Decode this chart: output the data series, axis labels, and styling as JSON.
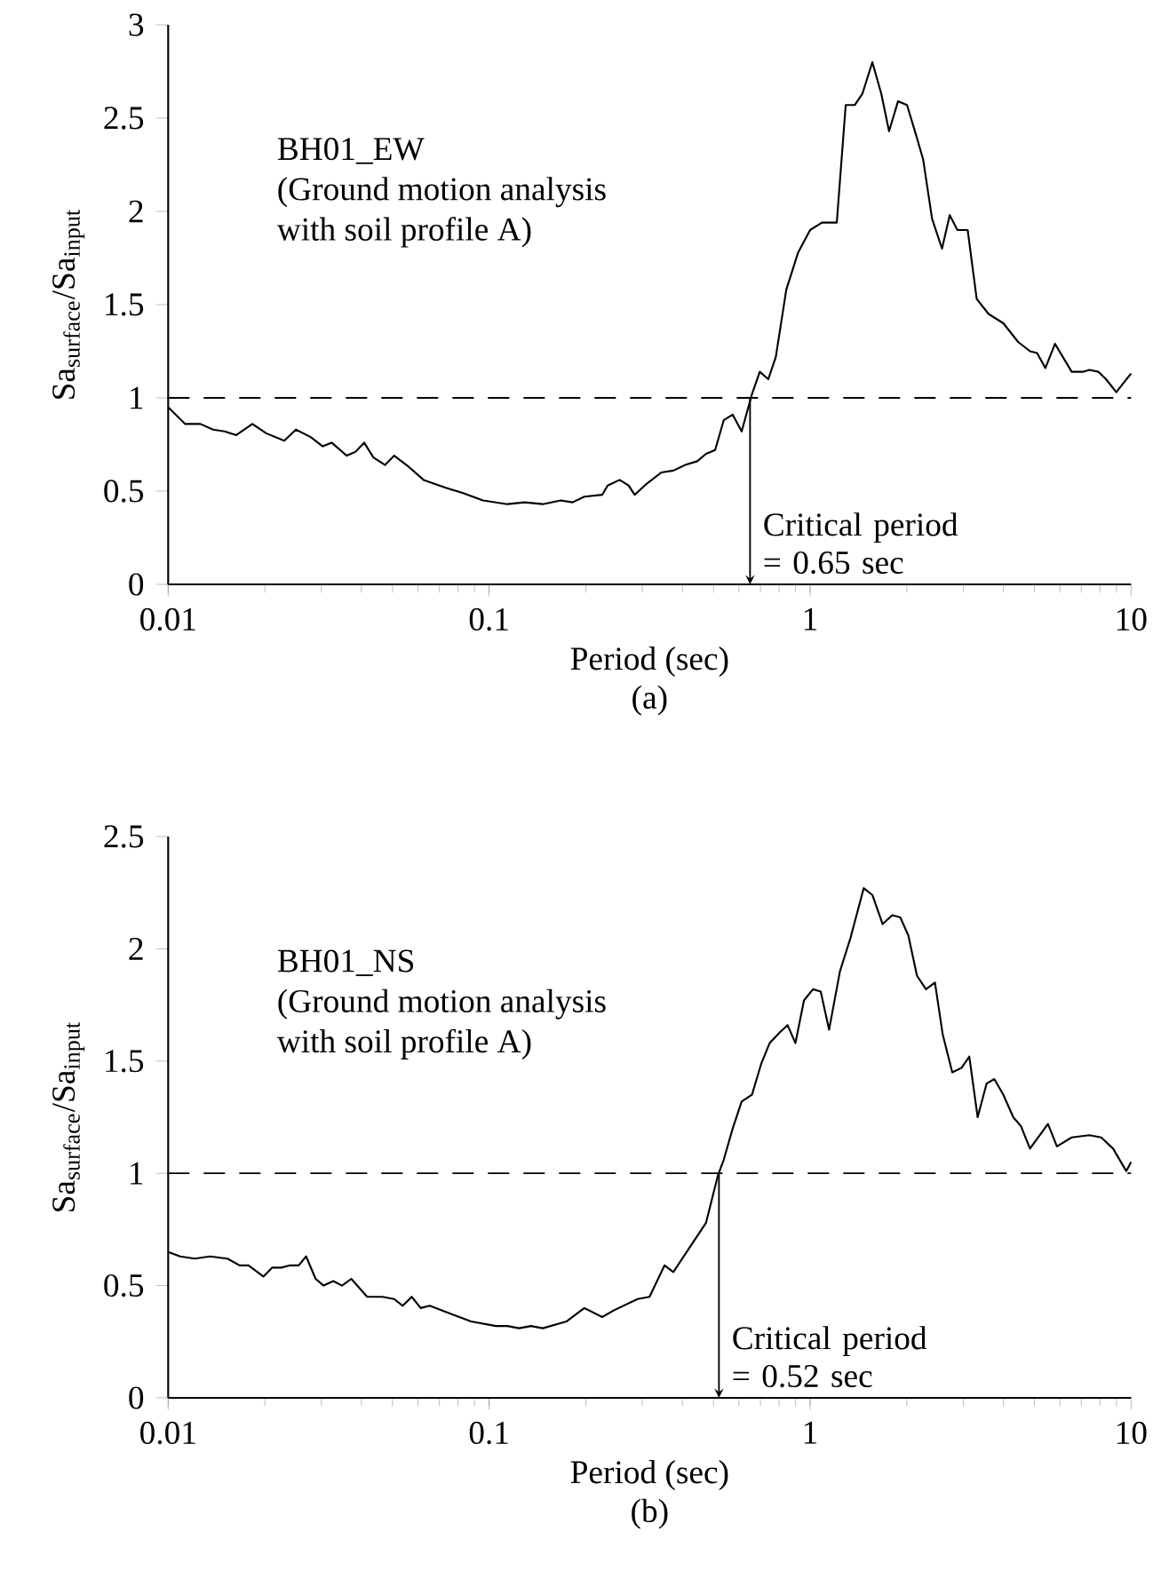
{
  "chart_data": [
    {
      "type": "line",
      "title": "(a)",
      "xlabel": "Period (sec)",
      "ylabel": "Sa$_{surface}$/Sa$_{input}$",
      "log": "x",
      "xlim": [
        0.01,
        10
      ],
      "ylim": [
        0,
        3
      ],
      "xticks": [
        0.01,
        0.1,
        1,
        10
      ],
      "yticks": [
        0,
        0.5,
        1,
        1.5,
        2,
        2.5,
        3
      ],
      "x": [
        0.01,
        0.0113,
        0.0126,
        0.0138,
        0.015,
        0.0163,
        0.0183,
        0.0202,
        0.023,
        0.025,
        0.0278,
        0.0303,
        0.0323,
        0.036,
        0.0383,
        0.0408,
        0.0436,
        0.0474,
        0.0506,
        0.0562,
        0.0625,
        0.0726,
        0.0826,
        0.0957,
        0.114,
        0.129,
        0.147,
        0.167,
        0.182,
        0.198,
        0.225,
        0.234,
        0.255,
        0.272,
        0.284,
        0.31,
        0.344,
        0.375,
        0.408,
        0.445,
        0.474,
        0.506,
        0.538,
        0.574,
        0.612,
        0.659,
        0.697,
        0.741,
        0.782,
        0.843,
        0.918,
        1,
        1.089,
        1.211,
        1.291,
        1.377,
        1.455,
        1.563,
        1.667,
        1.762,
        1.879,
        2.004,
        2.138,
        2.249,
        2.399,
        2.576,
        2.723,
        2.877,
        3.097,
        3.304,
        3.597,
        4.0,
        4.446,
        4.842,
        5.093,
        5.408,
        5.794,
        6.531,
        7.112,
        7.413,
        7.907,
        8.356,
        8.995,
        9.572,
        10
      ],
      "values": [
        0.95,
        0.86,
        0.86,
        0.83,
        0.82,
        0.8,
        0.86,
        0.81,
        0.77,
        0.83,
        0.79,
        0.74,
        0.76,
        0.69,
        0.71,
        0.76,
        0.68,
        0.64,
        0.69,
        0.63,
        0.56,
        0.52,
        0.49,
        0.45,
        0.43,
        0.44,
        0.43,
        0.45,
        0.44,
        0.47,
        0.48,
        0.53,
        0.56,
        0.53,
        0.48,
        0.54,
        0.6,
        0.61,
        0.64,
        0.66,
        0.7,
        0.72,
        0.88,
        0.91,
        0.82,
        1.02,
        1.14,
        1.1,
        1.22,
        1.58,
        1.78,
        1.9,
        1.94,
        1.94,
        2.57,
        2.57,
        2.63,
        2.8,
        2.63,
        2.43,
        2.59,
        2.57,
        2.41,
        2.28,
        1.96,
        1.8,
        1.98,
        1.9,
        1.9,
        1.53,
        1.45,
        1.4,
        1.3,
        1.25,
        1.24,
        1.16,
        1.29,
        1.14,
        1.14,
        1.15,
        1.14,
        1.1,
        1.03,
        1.09,
        1.13
      ],
      "color": "#000000",
      "ref_lines": [
        {
          "axis": "y",
          "value": 1,
          "line_style": "dashed",
          "color": "#000000"
        },
        {
          "axis": "x",
          "value": 0.65,
          "line_style": "solid",
          "color": "#000000",
          "label": "Critical period = 0.65 sec"
        }
      ],
      "annotations": [
        "BH01_EW",
        "(Ground motion analysis",
        "with soil profile A)"
      ]
    },
    {
      "type": "line",
      "title": "(b)",
      "xlabel": "Period (sec)",
      "ylabel": "Sa$_{surface}$/Sa$_{input}$",
      "log": "x",
      "xlim": [
        0.01,
        10
      ],
      "ylim": [
        0,
        2.5
      ],
      "xticks": [
        0.01,
        0.1,
        1,
        10
      ],
      "yticks": [
        0,
        0.5,
        1,
        1.5,
        2,
        2.5
      ],
      "x": [
        0.01,
        0.0109,
        0.0121,
        0.0135,
        0.0153,
        0.0167,
        0.0178,
        0.0198,
        0.0211,
        0.0225,
        0.024,
        0.0255,
        0.0269,
        0.0288,
        0.0305,
        0.0327,
        0.0348,
        0.0372,
        0.0417,
        0.0465,
        0.0506,
        0.0538,
        0.0574,
        0.0612,
        0.0653,
        0.0774,
        0.0879,
        0.105,
        0.114,
        0.124,
        0.135,
        0.147,
        0.174,
        0.198,
        0.225,
        0.245,
        0.29,
        0.316,
        0.331,
        0.352,
        0.375,
        0.417,
        0.474,
        0.516,
        0.538,
        0.574,
        0.612,
        0.659,
        0.705,
        0.748,
        0.807,
        0.851,
        0.9,
        0.957,
        1.021,
        1.079,
        1.146,
        1.239,
        1.337,
        1.469,
        1.563,
        1.683,
        1.803,
        1.91,
        2.023,
        2.153,
        2.296,
        2.449,
        2.588,
        2.773,
        2.965,
        3.133,
        3.327,
        3.548,
        3.75,
        4.0,
        4.295,
        4.539,
        4.842,
        5.508,
        5.875,
        6.531,
        7.413,
        8.072,
        8.79,
        9.66,
        10
      ],
      "values": [
        0.65,
        0.63,
        0.62,
        0.63,
        0.62,
        0.59,
        0.59,
        0.54,
        0.58,
        0.58,
        0.59,
        0.59,
        0.63,
        0.53,
        0.5,
        0.52,
        0.5,
        0.53,
        0.45,
        0.45,
        0.44,
        0.41,
        0.45,
        0.4,
        0.41,
        0.37,
        0.34,
        0.32,
        0.32,
        0.31,
        0.32,
        0.31,
        0.34,
        0.4,
        0.36,
        0.39,
        0.44,
        0.45,
        0.51,
        0.59,
        0.56,
        0.66,
        0.78,
        0.99,
        1.06,
        1.2,
        1.32,
        1.35,
        1.49,
        1.58,
        1.63,
        1.66,
        1.58,
        1.77,
        1.82,
        1.81,
        1.64,
        1.9,
        2.05,
        2.27,
        2.24,
        2.11,
        2.15,
        2.14,
        2.06,
        1.88,
        1.82,
        1.85,
        1.62,
        1.45,
        1.47,
        1.52,
        1.25,
        1.4,
        1.42,
        1.35,
        1.25,
        1.21,
        1.11,
        1.22,
        1.12,
        1.16,
        1.17,
        1.16,
        1.11,
        1.01,
        1.05
      ],
      "color": "#000000",
      "ref_lines": [
        {
          "axis": "y",
          "value": 1,
          "line_style": "dashed",
          "color": "#000000"
        },
        {
          "axis": "x",
          "value": 0.52,
          "line_style": "solid",
          "color": "#000000",
          "label": "Critical period = 0.52 sec"
        }
      ],
      "annotations": [
        "BH01_NS",
        "(Ground motion analysis",
        "with soil profile A)"
      ]
    }
  ]
}
